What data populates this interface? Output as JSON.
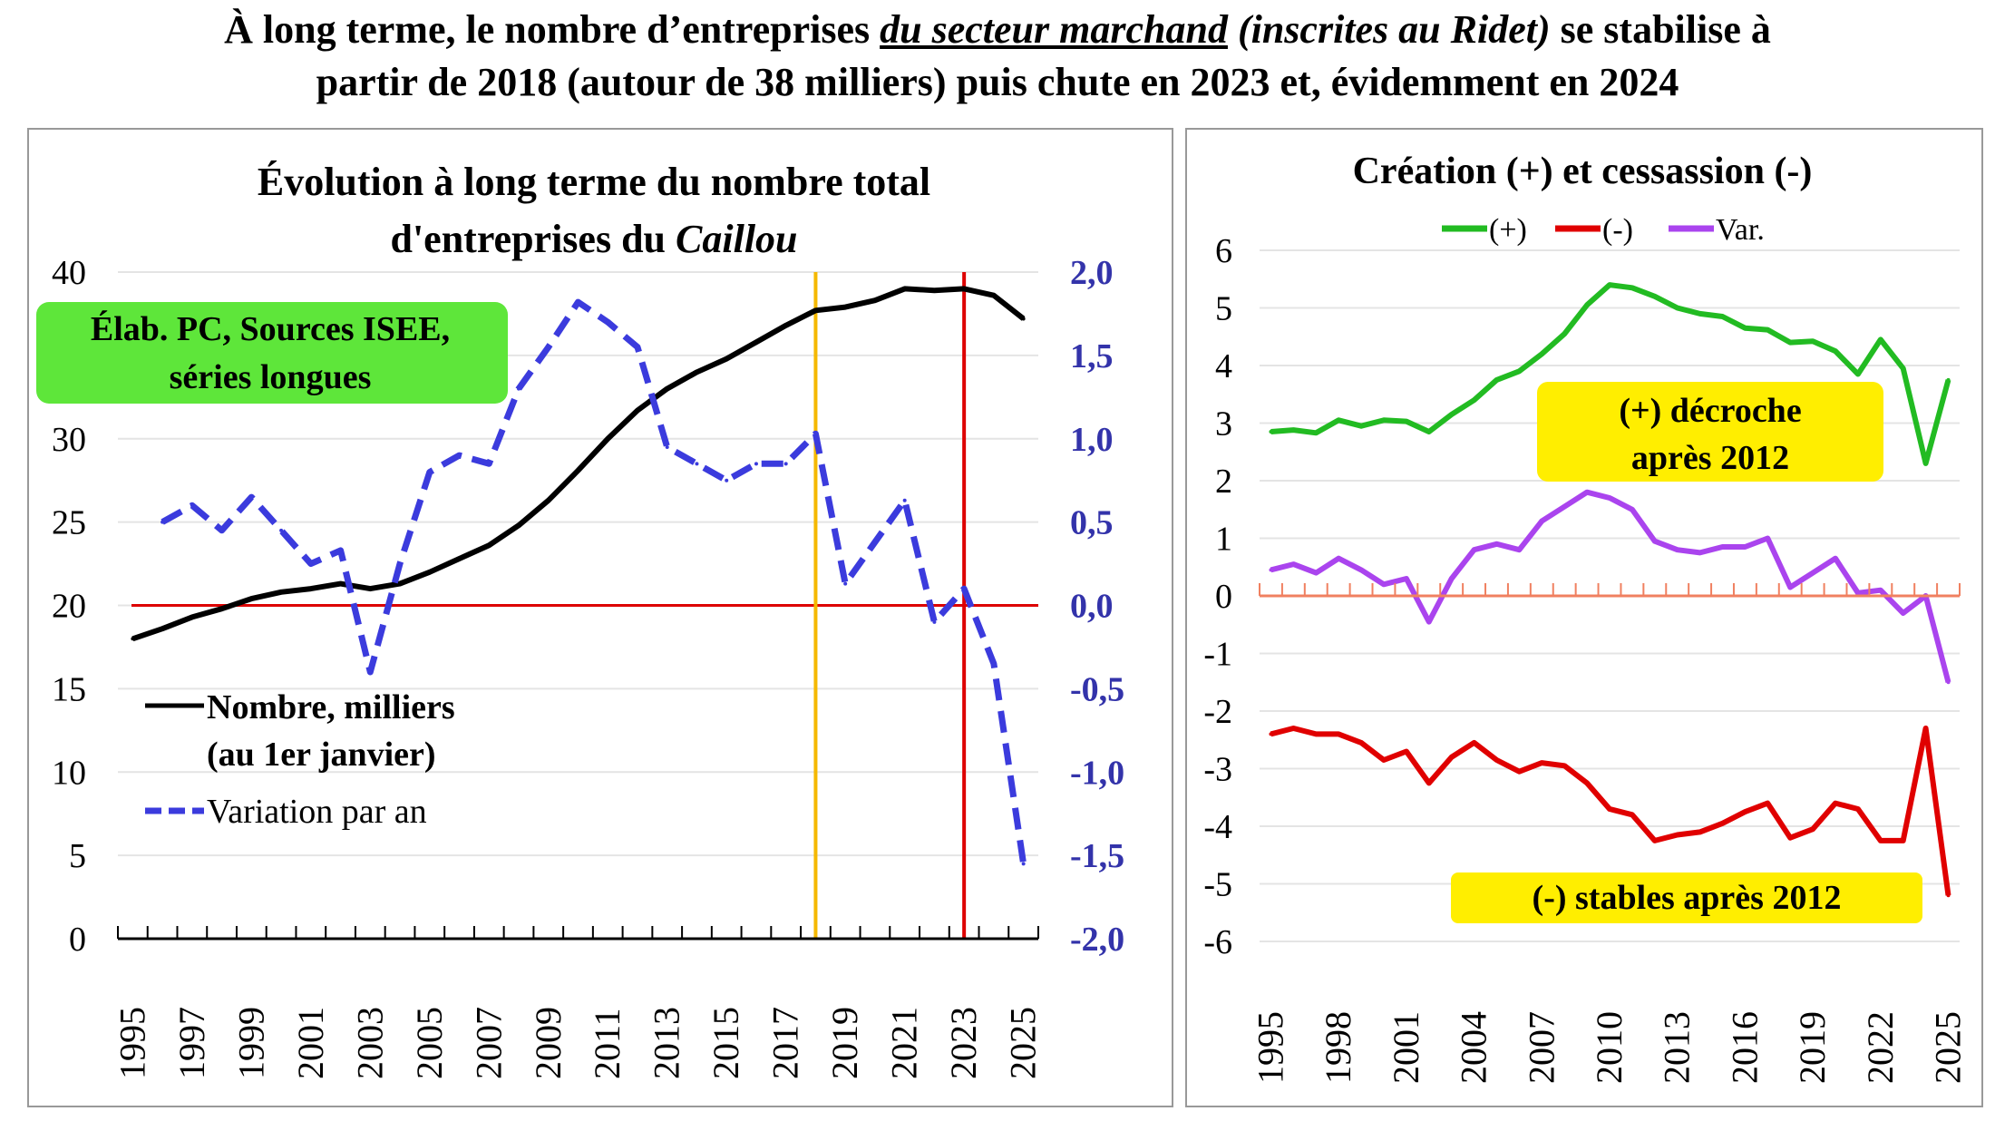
{
  "title": {
    "part1": "À long terme, le nombre d’entreprises ",
    "underlined": "du secteur marchand",
    "italic": " (inscrites au Ridet)",
    "part2": " se stabilise à",
    "line2": "partir de 2018 (autour de 38 milliers) puis chute en 2023 et, évidemment en 2024"
  },
  "chart_data": [
    {
      "type": "line",
      "title_line1": "Évolution à long terme du nombre total",
      "title_line2_plain": "d'entreprises du ",
      "title_line2_italic": "Caillou",
      "source_note_line1": "Élab. PC, Sources ISEE,",
      "source_note_line2": "séries longues",
      "x": [
        1995,
        1996,
        1997,
        1998,
        1999,
        2000,
        2001,
        2002,
        2003,
        2004,
        2005,
        2006,
        2007,
        2008,
        2009,
        2010,
        2011,
        2012,
        2013,
        2014,
        2015,
        2016,
        2017,
        2018,
        2019,
        2020,
        2021,
        2022,
        2023,
        2024,
        2025
      ],
      "x_tick_labels": [
        "1995",
        "1997",
        "1999",
        "2001",
        "2003",
        "2005",
        "2007",
        "2009",
        "2011",
        "2013",
        "2015",
        "2017",
        "2019",
        "2021",
        "2023",
        "2025"
      ],
      "y_left": {
        "ylim": [
          0,
          40
        ],
        "ticks": [
          "0",
          "5",
          "10",
          "15",
          "20",
          "25",
          "30",
          "35",
          "40"
        ]
      },
      "y_right": {
        "ylim": [
          -2,
          2
        ],
        "ticks": [
          "-2,0",
          "-1,5",
          "-1,0",
          "-0,5",
          "0,0",
          "0,5",
          "1,0",
          "1,5",
          "2,0"
        ],
        "color": "#3333aa"
      },
      "series": [
        {
          "name": "Nombre, milliers",
          "name_line2": "(au 1er janvier)",
          "axis": "left",
          "color": "#000000",
          "style": "solid",
          "values": [
            18.0,
            18.6,
            19.3,
            19.8,
            20.4,
            20.8,
            21.0,
            21.3,
            21.0,
            21.3,
            22.0,
            22.8,
            23.6,
            24.8,
            26.3,
            28.1,
            30.0,
            31.7,
            33.0,
            34.0,
            34.8,
            35.8,
            36.8,
            37.7,
            37.9,
            38.3,
            39.0,
            38.9,
            39.0,
            38.6,
            37.2
          ]
        },
        {
          "name": "Variation par an",
          "axis": "right",
          "color": "#3b3bdd",
          "style": "dashed",
          "values": [
            null,
            0.5,
            0.6,
            0.45,
            0.65,
            0.45,
            0.25,
            0.33,
            -0.4,
            0.25,
            0.8,
            0.9,
            0.85,
            1.3,
            1.55,
            1.82,
            1.7,
            1.55,
            0.95,
            0.85,
            0.75,
            0.85,
            0.85,
            1.03,
            0.13,
            0.38,
            0.63,
            -0.1,
            0.1,
            -0.35,
            -1.55
          ]
        }
      ],
      "reference_lines": [
        {
          "orientation": "horizontal",
          "value_right_axis": 0,
          "color": "#dd0000"
        },
        {
          "orientation": "vertical",
          "x": 2018,
          "color": "#f5b800"
        },
        {
          "orientation": "vertical",
          "x": 2023,
          "color": "#dd0000"
        }
      ],
      "grid": true
    },
    {
      "type": "line",
      "title": "Création (+) et cessassion (-)",
      "legend_position": "top",
      "x": [
        1995,
        1996,
        1997,
        1998,
        1999,
        2000,
        2001,
        2002,
        2003,
        2004,
        2005,
        2006,
        2007,
        2008,
        2009,
        2010,
        2011,
        2012,
        2013,
        2014,
        2015,
        2016,
        2017,
        2018,
        2019,
        2020,
        2021,
        2022,
        2023,
        2024,
        2025
      ],
      "x_tick_labels": [
        "1995",
        "1998",
        "2001",
        "2004",
        "2007",
        "2010",
        "2013",
        "2016",
        "2019",
        "2022",
        "2025"
      ],
      "ylim": [
        -6,
        6
      ],
      "y_ticks": [
        "-6",
        "-5",
        "-4",
        "-3",
        "-2",
        "-1",
        "0",
        "1",
        "2",
        "3",
        "4",
        "5",
        "6"
      ],
      "series": [
        {
          "name": "(+)",
          "color": "#22bb22",
          "values": [
            2.85,
            2.88,
            2.83,
            3.05,
            2.95,
            3.05,
            3.03,
            2.85,
            3.15,
            3.4,
            3.75,
            3.9,
            4.2,
            4.55,
            5.05,
            5.4,
            5.35,
            5.2,
            5.0,
            4.9,
            4.85,
            4.65,
            4.62,
            4.4,
            4.42,
            4.25,
            3.85,
            4.45,
            3.95,
            2.3,
            3.75
          ]
        },
        {
          "name": "(-)",
          "color": "#e00000",
          "values": [
            -2.4,
            -2.3,
            -2.4,
            -2.4,
            -2.55,
            -2.85,
            -2.7,
            -3.25,
            -2.8,
            -2.55,
            -2.85,
            -3.05,
            -2.9,
            -2.95,
            -3.25,
            -3.7,
            -3.8,
            -4.25,
            -4.15,
            -4.1,
            -3.95,
            -3.75,
            -3.6,
            -4.2,
            -4.05,
            -3.6,
            -3.7,
            -4.25,
            -4.25,
            -2.3,
            -5.2
          ]
        },
        {
          "name": "Var.",
          "color": "#aa44ee",
          "values": [
            0.45,
            0.55,
            0.4,
            0.65,
            0.45,
            0.2,
            0.3,
            -0.45,
            0.3,
            0.8,
            0.9,
            0.8,
            1.3,
            1.55,
            1.8,
            1.7,
            1.5,
            0.95,
            0.8,
            0.75,
            0.85,
            0.85,
            1.0,
            0.15,
            0.4,
            0.65,
            0.05,
            0.1,
            -0.3,
            0.0,
            -1.5
          ]
        }
      ],
      "annotations": [
        {
          "line1": "(+) décroche",
          "line2": "après 2012",
          "color": "#ffee00"
        },
        {
          "line1": "(-) stables après 2012",
          "color": "#ffee00"
        }
      ],
      "grid": true
    }
  ]
}
